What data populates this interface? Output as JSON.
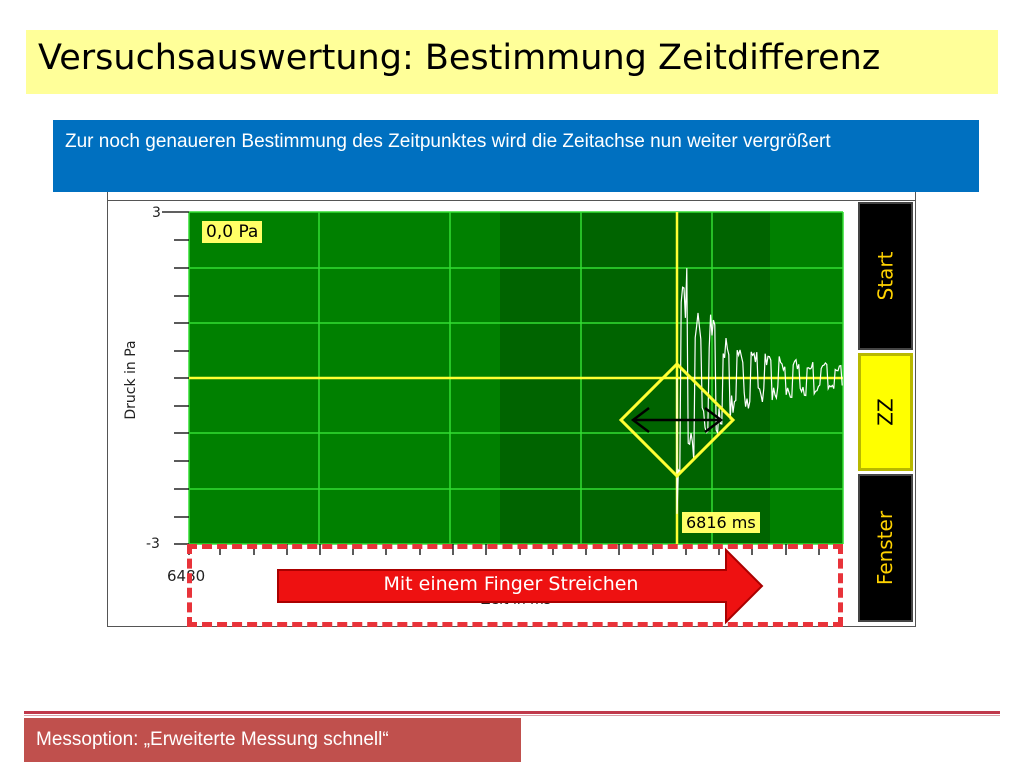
{
  "slide": {
    "title": "Versuchsauswertung: Bestimmung Zeitdifferenz",
    "info_text": "Zur noch genaueren Bestimmung des Zeitpunktes wird die Zeitachse nun weiter vergrößert",
    "footer": "Messoption: „Erweiterte Messung schnell“"
  },
  "app": {
    "pressure_readout": "0,0 Pa",
    "time_readout": "6816 ms",
    "buttons": {
      "start": "Start",
      "zz": "ZZ",
      "window": "Fenster"
    },
    "swipe_hint": "Mit einem Finger Streichen"
  },
  "chart_data": {
    "type": "line",
    "ylabel": "Druck in Pa",
    "xlabel": "Zeit in ms",
    "ylim": [
      -3,
      3
    ],
    "y_ticks": [
      "3",
      "-3"
    ],
    "x_first_tick": "6480",
    "cursor_time_ms": 6816,
    "cursor_pressure_pa": 0.0,
    "plot_background": "#008000",
    "highlight_background": "#006400",
    "grid": true,
    "trace_color": "#ffffff",
    "cursor_color": "#ffff33"
  },
  "colors": {
    "title_bg": "#ffff99",
    "info_bg": "#0070c0",
    "footer_bg": "#c0504d",
    "swipe_arrow": "#ee1111",
    "dash_border": "#e8333a"
  }
}
